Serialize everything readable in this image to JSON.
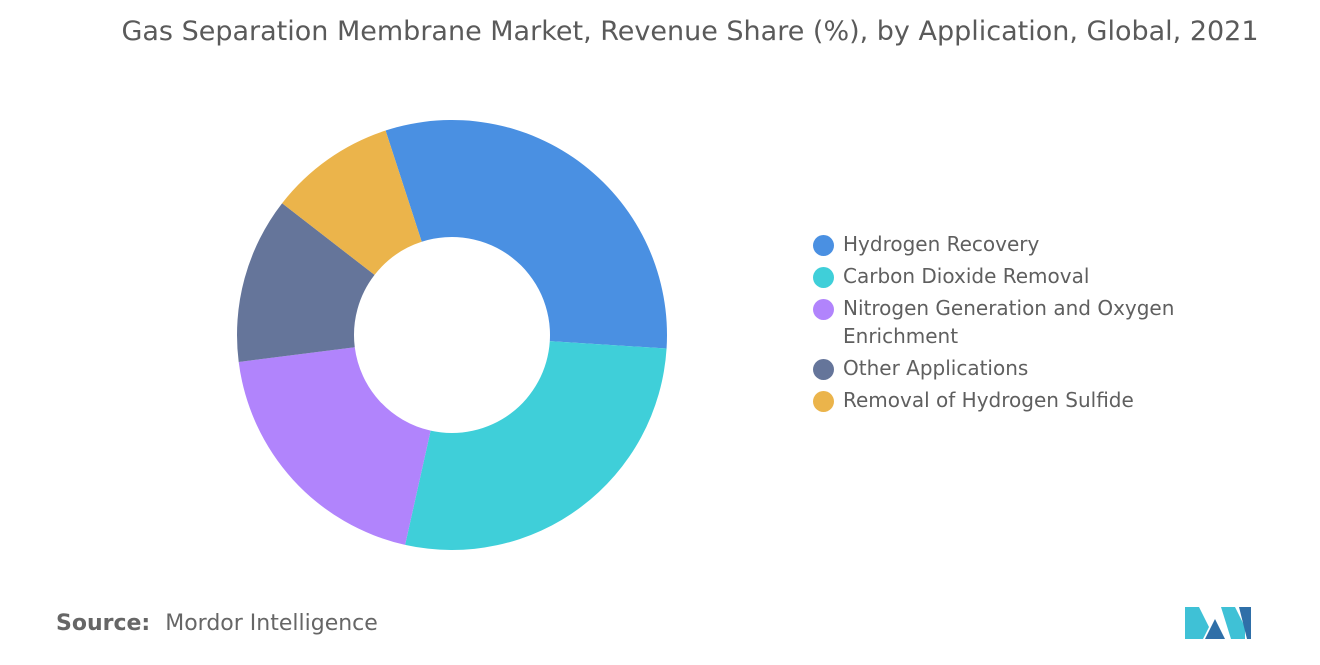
{
  "title": "Gas Separation Membrane Market, Revenue Share (%), by Application, Global, 2021",
  "source": {
    "label": "Source:",
    "value": "Mordor Intelligence"
  },
  "chart_data": {
    "type": "pie",
    "title": "Gas Separation Membrane Market, Revenue Share (%), by Application, Global, 2021",
    "donut": true,
    "legend_position": "right",
    "categories": [
      "Hydrogen Recovery",
      "Carbon Dioxide Removal",
      "Nitrogen Generation and Oxygen Enrichment",
      "Other Applications",
      "Removal of Hydrogen Sulfide"
    ],
    "values": [
      31,
      27.5,
      19.5,
      12.5,
      9.5
    ],
    "colors": [
      "#4a90e2",
      "#3fcfd9",
      "#b184fc",
      "#65759a",
      "#ebb44b"
    ]
  },
  "legend": {
    "items": [
      {
        "label": "Hydrogen Recovery",
        "color": "#4a90e2"
      },
      {
        "label": "Carbon Dioxide Removal",
        "color": "#3fcfd9"
      },
      {
        "label": "Nitrogen Generation and Oxygen Enrichment",
        "color": "#b184fc"
      },
      {
        "label": "Other Applications",
        "color": "#65759a"
      },
      {
        "label": "Removal of Hydrogen Sulfide",
        "color": "#ebb44b"
      }
    ]
  },
  "logo": {
    "name": "mordor-intelligence-logo",
    "colors": [
      "#3fc1d6",
      "#2f6fa8"
    ]
  }
}
